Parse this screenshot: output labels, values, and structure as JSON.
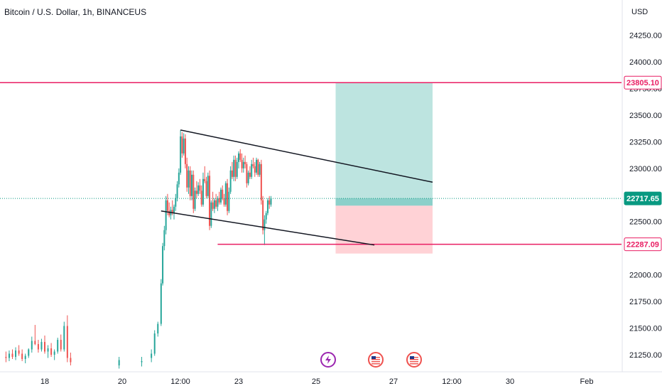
{
  "header": {
    "title": "Bitcoin / U.S. Dollar, 1h, BINANCEUS"
  },
  "colors": {
    "up": "#26a69a",
    "down": "#ef5350",
    "resistance": "#e91e63",
    "last_price": "#089981",
    "target_zone": "#b2dfdb",
    "stop_zone": "#ffcdd2",
    "trendline": "#131722"
  },
  "chart_data": {
    "type": "candlestick",
    "symbol": "Bitcoin / U.S. Dollar",
    "interval": "1h",
    "exchange": "BINANCEUS",
    "currency": "USD",
    "y_ticks": [
      21250,
      21500,
      21750,
      22000,
      22250,
      22500,
      22750,
      23000,
      23250,
      23500,
      23750,
      24000,
      24250
    ],
    "y_tick_labels": [
      "21250.00",
      "21500.00",
      "21750.00",
      "22000.00",
      "22250.00",
      "22500.00",
      "22750.00",
      "23000.00",
      "23250.00",
      "23500.00",
      "23750.00",
      "24000.00",
      "24250.00"
    ],
    "x_tick_labels": [
      "18",
      "20",
      "12:00",
      "23",
      "25",
      "27",
      "12:00",
      "30",
      "Feb"
    ],
    "price_labels": {
      "resistance": "23805.10",
      "last": "22717.65",
      "support": "22287.09"
    },
    "levels": {
      "resistance": 23805.1,
      "last": 22717.65,
      "support": 22287.09
    },
    "channel": {
      "upper": [
        {
          "date": "2023-01-21T12:00",
          "price": 23360
        },
        {
          "date": "2023-01-28T00:00",
          "price": 22870
        }
      ],
      "lower": [
        {
          "date": "2023-01-21T00:00",
          "price": 22600
        },
        {
          "date": "2023-01-26T12:00",
          "price": 22280
        }
      ]
    },
    "position": {
      "type": "long",
      "entry": 22650,
      "target": 23805.1,
      "stop": 22200,
      "start": "2023-01-25T12:00",
      "end": "2023-01-28T00:00"
    },
    "event_icons": [
      "lightning-icon",
      "us-flag-icon",
      "us-flag-icon"
    ],
    "candles": [
      [
        "2023-01-17T00:00",
        21230,
        21280,
        21180,
        21220
      ],
      [
        "2023-01-17T02:00",
        21220,
        21290,
        21190,
        21260
      ],
      [
        "2023-01-17T04:00",
        21260,
        21300,
        21210,
        21230
      ],
      [
        "2023-01-17T06:00",
        21230,
        21320,
        21200,
        21290
      ],
      [
        "2023-01-17T08:00",
        21290,
        21340,
        21240,
        21260
      ],
      [
        "2023-01-17T10:00",
        21260,
        21300,
        21190,
        21210
      ],
      [
        "2023-01-17T12:00",
        21210,
        21260,
        21170,
        21240
      ],
      [
        "2023-01-17T14:00",
        21240,
        21310,
        21220,
        21300
      ],
      [
        "2023-01-17T16:00",
        21300,
        21420,
        21270,
        21380
      ],
      [
        "2023-01-17T18:00",
        21380,
        21530,
        21340,
        21350
      ],
      [
        "2023-01-17T20:00",
        21350,
        21390,
        21270,
        21300
      ],
      [
        "2023-01-17T22:00",
        21300,
        21400,
        21280,
        21370
      ],
      [
        "2023-01-18T00:00",
        21370,
        21430,
        21260,
        21280
      ],
      [
        "2023-01-18T02:00",
        21280,
        21340,
        21220,
        21310
      ],
      [
        "2023-01-18T04:00",
        21310,
        21360,
        21230,
        21250
      ],
      [
        "2023-01-18T06:00",
        21250,
        21300,
        21200,
        21280
      ],
      [
        "2023-01-18T08:00",
        21280,
        21410,
        21260,
        21390
      ],
      [
        "2023-01-18T10:00",
        21390,
        21440,
        21280,
        21300
      ],
      [
        "2023-01-18T12:00",
        21300,
        21560,
        21280,
        21520
      ],
      [
        "2023-01-18T14:00",
        21520,
        21620,
        21180,
        21220
      ],
      [
        "2023-01-18T16:00",
        21220,
        21270,
        21150,
        21180
      ],
      [
        "2023-01-19T22:00",
        21150,
        21230,
        21120,
        21200
      ],
      [
        "2023-01-20T12:00",
        21180,
        21230,
        21140,
        21190
      ],
      [
        "2023-01-20T18:00",
        21220,
        21300,
        21180,
        21260
      ],
      [
        "2023-01-20T20:00",
        21260,
        21480,
        21240,
        21450
      ],
      [
        "2023-01-20T22:00",
        21450,
        21560,
        21420,
        21540
      ],
      [
        "2023-01-21T00:00",
        21540,
        21960,
        21520,
        21920
      ],
      [
        "2023-01-21T01:00",
        21920,
        22300,
        21900,
        22270
      ],
      [
        "2023-01-21T02:00",
        22270,
        22460,
        22230,
        22420
      ],
      [
        "2023-01-21T03:00",
        22420,
        22740,
        22380,
        22700
      ],
      [
        "2023-01-21T04:00",
        22700,
        22760,
        22560,
        22600
      ],
      [
        "2023-01-21T05:00",
        22600,
        22680,
        22540,
        22560
      ],
      [
        "2023-01-21T06:00",
        22560,
        22640,
        22520,
        22610
      ],
      [
        "2023-01-21T07:00",
        22610,
        22700,
        22560,
        22580
      ],
      [
        "2023-01-21T08:00",
        22580,
        22660,
        22520,
        22640
      ],
      [
        "2023-01-21T09:00",
        22640,
        22760,
        22600,
        22720
      ],
      [
        "2023-01-21T10:00",
        22720,
        22880,
        22690,
        22850
      ],
      [
        "2023-01-21T11:00",
        22850,
        23000,
        22820,
        22960
      ],
      [
        "2023-01-21T12:00",
        22960,
        23360,
        22940,
        23300
      ],
      [
        "2023-01-21T13:00",
        23300,
        23340,
        23100,
        23140
      ],
      [
        "2023-01-21T14:00",
        23140,
        23330,
        23120,
        23280
      ],
      [
        "2023-01-21T15:00",
        23280,
        23320,
        23000,
        23040
      ],
      [
        "2023-01-21T16:00",
        23040,
        23100,
        22780,
        22820
      ],
      [
        "2023-01-21T17:00",
        22820,
        23020,
        22760,
        22980
      ],
      [
        "2023-01-21T18:00",
        22980,
        23020,
        22700,
        22740
      ],
      [
        "2023-01-21T19:00",
        22740,
        22980,
        22700,
        22940
      ],
      [
        "2023-01-21T20:00",
        22940,
        22980,
        22580,
        22620
      ],
      [
        "2023-01-21T21:00",
        22620,
        22820,
        22600,
        22790
      ],
      [
        "2023-01-21T22:00",
        22790,
        22880,
        22720,
        22760
      ],
      [
        "2023-01-21T23:00",
        22760,
        22870,
        22740,
        22840
      ],
      [
        "2023-01-22T00:00",
        22840,
        22900,
        22760,
        22790
      ],
      [
        "2023-01-22T01:00",
        22790,
        22840,
        22640,
        22660
      ],
      [
        "2023-01-22T02:00",
        22660,
        22960,
        22640,
        22900
      ],
      [
        "2023-01-22T03:00",
        22900,
        23020,
        22860,
        22880
      ],
      [
        "2023-01-22T04:00",
        22880,
        22920,
        22720,
        22740
      ],
      [
        "2023-01-22T05:00",
        22740,
        22960,
        22720,
        22930
      ],
      [
        "2023-01-22T06:00",
        22930,
        22980,
        22420,
        22460
      ],
      [
        "2023-01-22T07:00",
        22460,
        22700,
        22440,
        22680
      ],
      [
        "2023-01-22T08:00",
        22680,
        22780,
        22600,
        22620
      ],
      [
        "2023-01-22T09:00",
        22620,
        22720,
        22580,
        22700
      ],
      [
        "2023-01-22T10:00",
        22700,
        22760,
        22620,
        22640
      ],
      [
        "2023-01-22T11:00",
        22640,
        22740,
        22600,
        22720
      ],
      [
        "2023-01-22T12:00",
        22720,
        22780,
        22660,
        22680
      ],
      [
        "2023-01-22T13:00",
        22680,
        22820,
        22660,
        22800
      ],
      [
        "2023-01-22T14:00",
        22800,
        22840,
        22700,
        22720
      ],
      [
        "2023-01-22T15:00",
        22720,
        22760,
        22640,
        22660
      ],
      [
        "2023-01-22T16:00",
        22660,
        22880,
        22640,
        22860
      ],
      [
        "2023-01-22T17:00",
        22860,
        22900,
        22560,
        22600
      ],
      [
        "2023-01-22T18:00",
        22600,
        22820,
        22580,
        22780
      ],
      [
        "2023-01-22T19:00",
        22780,
        23020,
        22760,
        22980
      ],
      [
        "2023-01-22T20:00",
        22980,
        23060,
        22900,
        22920
      ],
      [
        "2023-01-22T21:00",
        22920,
        23120,
        22880,
        23080
      ],
      [
        "2023-01-22T22:00",
        23080,
        23120,
        22880,
        22920
      ],
      [
        "2023-01-22T23:00",
        22920,
        23100,
        22900,
        23060
      ],
      [
        "2023-01-23T00:00",
        23060,
        23160,
        23000,
        23140
      ],
      [
        "2023-01-23T01:00",
        23140,
        23180,
        23060,
        23080
      ],
      [
        "2023-01-23T02:00",
        23080,
        23140,
        22960,
        23000
      ],
      [
        "2023-01-23T03:00",
        23000,
        23100,
        22960,
        23060
      ],
      [
        "2023-01-23T04:00",
        23060,
        23120,
        23000,
        23040
      ],
      [
        "2023-01-23T05:00",
        23040,
        23060,
        22820,
        22860
      ],
      [
        "2023-01-23T06:00",
        22860,
        22980,
        22840,
        22960
      ],
      [
        "2023-01-23T07:00",
        22960,
        23020,
        22900,
        22920
      ],
      [
        "2023-01-23T08:00",
        22920,
        23080,
        22900,
        23040
      ],
      [
        "2023-01-23T09:00",
        23040,
        23100,
        23000,
        23020
      ],
      [
        "2023-01-23T10:00",
        23020,
        23060,
        22920,
        22960
      ],
      [
        "2023-01-23T11:00",
        22960,
        23100,
        22940,
        23080
      ],
      [
        "2023-01-23T12:00",
        23080,
        23090,
        22920,
        22940
      ],
      [
        "2023-01-23T13:00",
        22940,
        23060,
        22920,
        23040
      ],
      [
        "2023-01-23T14:00",
        23040,
        23080,
        22660,
        22700
      ],
      [
        "2023-01-23T15:00",
        22700,
        22740,
        22380,
        22420
      ],
      [
        "2023-01-23T16:00",
        22420,
        22560,
        22280,
        22520
      ],
      [
        "2023-01-23T17:00",
        22520,
        22600,
        22480,
        22580
      ],
      [
        "2023-01-23T18:00",
        22580,
        22720,
        22560,
        22700
      ],
      [
        "2023-01-23T19:00",
        22700,
        22740,
        22620,
        22660
      ],
      [
        "2023-01-23T20:00",
        22660,
        22740,
        22640,
        22717.65
      ]
    ]
  }
}
